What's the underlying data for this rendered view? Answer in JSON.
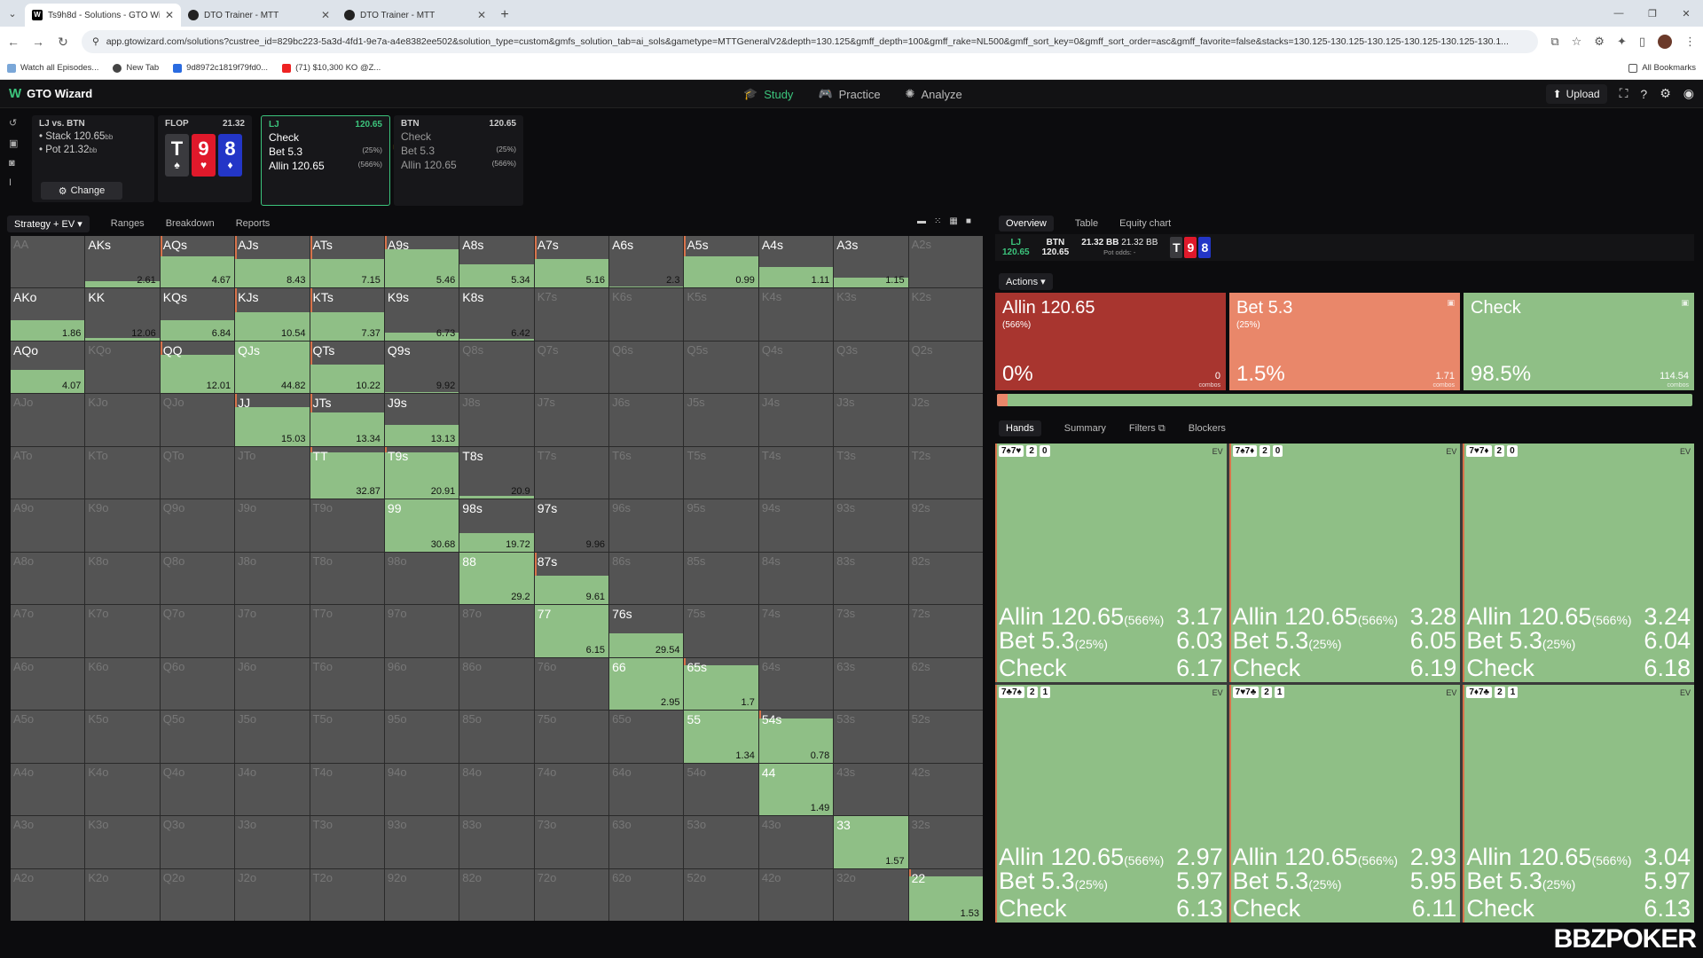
{
  "browser": {
    "tabs": [
      {
        "title": "Ts9h8d - Solutions - GTO Wiza",
        "active": true
      },
      {
        "title": "DTO Trainer - MTT",
        "active": false
      },
      {
        "title": "DTO Trainer - MTT",
        "active": false
      }
    ],
    "url": "app.gtowizard.com/solutions?custree_id=829bc223-5a3d-4fd1-9e7a-a4e8382ee502&solution_type=custom&gmfs_solution_tab=ai_sols&gametype=MTTGeneralV2&depth=130.125&gmff_depth=100&gmff_rake=NL500&gmff_sort_key=0&gmff_sort_order=asc&gmff_favorite=false&stacks=130.125-130.125-130.125-130.125-130.125-130.1...",
    "bookmarks": [
      "Watch all Episodes...",
      "New Tab",
      "9d8972c1819f79fd0...",
      "(71) $10,300 KO @Z..."
    ],
    "all_bookmarks": "All Bookmarks"
  },
  "app": {
    "name": "GTO Wizard",
    "nav": [
      "Study",
      "Practice",
      "Analyze"
    ],
    "upload": "Upload"
  },
  "spot": {
    "matchup": "LJ vs. BTN",
    "stack": "Stack 120.65",
    "stack_unit": "bb",
    "pot": "Pot 21.32",
    "pot_unit": "bb",
    "change": "Change"
  },
  "flop": {
    "label": "FLOP",
    "pot": "21.32",
    "cards": [
      {
        "rank": "T",
        "suit": "♠",
        "color": "#3a3a3e"
      },
      {
        "rank": "9",
        "suit": "♥",
        "color": "#e0192b"
      },
      {
        "rank": "8",
        "suit": "♦",
        "color": "#2336c7"
      }
    ]
  },
  "nodes": {
    "lj": {
      "pos": "LJ",
      "stack": "120.65",
      "actions": [
        {
          "name": "Check",
          "size": ""
        },
        {
          "name": "Bet 5.3",
          "size": "(25%)"
        },
        {
          "name": "Allin 120.65",
          "size": "(566%)"
        }
      ]
    },
    "btn": {
      "pos": "BTN",
      "stack": "120.65",
      "actions": [
        {
          "name": "Check",
          "size": ""
        },
        {
          "name": "Bet 5.3",
          "size": "(25%)"
        },
        {
          "name": "Allin 120.65",
          "size": "(566%)"
        }
      ]
    }
  },
  "left_tabs": [
    "Strategy + EV",
    "Ranges",
    "Breakdown",
    "Reports"
  ],
  "matrix": [
    [
      [
        "AA",
        null,
        0
      ],
      [
        "AKs",
        2.61,
        0.12
      ],
      [
        "AQs",
        4.67,
        0.6
      ],
      [
        "AJs",
        8.43,
        0.55
      ],
      [
        "ATs",
        7.15,
        0.55
      ],
      [
        "A9s",
        5.46,
        0.75
      ],
      [
        "A8s",
        5.34,
        0.45
      ],
      [
        "A7s",
        5.16,
        0.55
      ],
      [
        "A6s",
        2.3,
        0.03
      ],
      [
        "A5s",
        0.99,
        0.6
      ],
      [
        "A4s",
        1.11,
        0.4
      ],
      [
        "A3s",
        1.15,
        0.2
      ],
      [
        "A2s",
        null,
        0
      ]
    ],
    [
      [
        "AKo",
        1.86,
        0.4
      ],
      [
        "KK",
        12.06,
        0.05
      ],
      [
        "KQs",
        6.84,
        0.4
      ],
      [
        "KJs",
        10.54,
        0.55
      ],
      [
        "KTs",
        7.37,
        0.55
      ],
      [
        "K9s",
        6.73,
        0.15
      ],
      [
        "K8s",
        6.42,
        0.03
      ],
      [
        "K7s",
        null,
        0
      ],
      [
        "K6s",
        null,
        0
      ],
      [
        "K5s",
        null,
        0
      ],
      [
        "K4s",
        null,
        0
      ],
      [
        "K3s",
        null,
        0
      ],
      [
        "K2s",
        null,
        0
      ]
    ],
    [
      [
        "AQo",
        4.07,
        0.45
      ],
      [
        "KQo",
        null,
        0
      ],
      [
        "QQ",
        12.01,
        0.75
      ],
      [
        "QJs",
        44.82,
        1
      ],
      [
        "QTs",
        10.22,
        0.55
      ],
      [
        "Q9s",
        9.92,
        0.03
      ],
      [
        "Q8s",
        null,
        0
      ],
      [
        "Q7s",
        null,
        0
      ],
      [
        "Q6s",
        null,
        0
      ],
      [
        "Q5s",
        null,
        0
      ],
      [
        "Q4s",
        null,
        0
      ],
      [
        "Q3s",
        null,
        0
      ],
      [
        "Q2s",
        null,
        0
      ]
    ],
    [
      [
        "AJo",
        null,
        0
      ],
      [
        "KJo",
        null,
        0
      ],
      [
        "QJo",
        null,
        0
      ],
      [
        "JJ",
        15.03,
        0.75
      ],
      [
        "JTs",
        13.34,
        0.65
      ],
      [
        "J9s",
        13.13,
        0.4
      ],
      [
        "J8s",
        null,
        0
      ],
      [
        "J7s",
        null,
        0
      ],
      [
        "J6s",
        null,
        0
      ],
      [
        "J5s",
        null,
        0
      ],
      [
        "J4s",
        null,
        0
      ],
      [
        "J3s",
        null,
        0
      ],
      [
        "J2s",
        null,
        0
      ]
    ],
    [
      [
        "ATo",
        null,
        0
      ],
      [
        "KTo",
        null,
        0
      ],
      [
        "QTo",
        null,
        0
      ],
      [
        "JTo",
        null,
        0
      ],
      [
        "TT",
        32.87,
        0.9
      ],
      [
        "T9s",
        20.91,
        0.9
      ],
      [
        "T8s",
        20.9,
        0.05
      ],
      [
        "T7s",
        null,
        0
      ],
      [
        "T6s",
        null,
        0
      ],
      [
        "T5s",
        null,
        0
      ],
      [
        "T4s",
        null,
        0
      ],
      [
        "T3s",
        null,
        0
      ],
      [
        "T2s",
        null,
        0
      ]
    ],
    [
      [
        "A9o",
        null,
        0
      ],
      [
        "K9o",
        null,
        0
      ],
      [
        "Q9o",
        null,
        0
      ],
      [
        "J9o",
        null,
        0
      ],
      [
        "T9o",
        null,
        0
      ],
      [
        "99",
        30.68,
        1
      ],
      [
        "98s",
        19.72,
        0.35
      ],
      [
        "97s",
        9.96,
        0
      ],
      [
        "96s",
        null,
        0
      ],
      [
        "95s",
        null,
        0
      ],
      [
        "94s",
        null,
        0
      ],
      [
        "93s",
        null,
        0
      ],
      [
        "92s",
        null,
        0
      ]
    ],
    [
      [
        "A8o",
        null,
        0
      ],
      [
        "K8o",
        null,
        0
      ],
      [
        "Q8o",
        null,
        0
      ],
      [
        "J8o",
        null,
        0
      ],
      [
        "T8o",
        null,
        0
      ],
      [
        "98o",
        null,
        0
      ],
      [
        "88",
        29.2,
        1
      ],
      [
        "87s",
        9.61,
        0.55
      ],
      [
        "86s",
        null,
        0
      ],
      [
        "85s",
        null,
        0
      ],
      [
        "84s",
        null,
        0
      ],
      [
        "83s",
        null,
        0
      ],
      [
        "82s",
        null,
        0
      ]
    ],
    [
      [
        "A7o",
        null,
        0
      ],
      [
        "K7o",
        null,
        0
      ],
      [
        "Q7o",
        null,
        0
      ],
      [
        "J7o",
        null,
        0
      ],
      [
        "T7o",
        null,
        0
      ],
      [
        "97o",
        null,
        0
      ],
      [
        "87o",
        null,
        0
      ],
      [
        "77",
        6.15,
        1
      ],
      [
        "76s",
        29.54,
        0.45
      ],
      [
        "75s",
        null,
        0
      ],
      [
        "74s",
        null,
        0
      ],
      [
        "73s",
        null,
        0
      ],
      [
        "72s",
        null,
        0
      ]
    ],
    [
      [
        "A6o",
        null,
        0
      ],
      [
        "K6o",
        null,
        0
      ],
      [
        "Q6o",
        null,
        0
      ],
      [
        "J6o",
        null,
        0
      ],
      [
        "T6o",
        null,
        0
      ],
      [
        "96o",
        null,
        0
      ],
      [
        "86o",
        null,
        0
      ],
      [
        "76o",
        null,
        0
      ],
      [
        "66",
        2.95,
        1
      ],
      [
        "65s",
        1.7,
        0.85
      ],
      [
        "64s",
        null,
        0
      ],
      [
        "63s",
        null,
        0
      ],
      [
        "62s",
        null,
        0
      ]
    ],
    [
      [
        "A5o",
        null,
        0
      ],
      [
        "K5o",
        null,
        0
      ],
      [
        "Q5o",
        null,
        0
      ],
      [
        "J5o",
        null,
        0
      ],
      [
        "T5o",
        null,
        0
      ],
      [
        "95o",
        null,
        0
      ],
      [
        "85o",
        null,
        0
      ],
      [
        "75o",
        null,
        0
      ],
      [
        "65o",
        null,
        0
      ],
      [
        "55",
        1.34,
        1
      ],
      [
        "54s",
        0.78,
        0.85
      ],
      [
        "53s",
        null,
        0
      ],
      [
        "52s",
        null,
        0
      ]
    ],
    [
      [
        "A4o",
        null,
        0
      ],
      [
        "K4o",
        null,
        0
      ],
      [
        "Q4o",
        null,
        0
      ],
      [
        "J4o",
        null,
        0
      ],
      [
        "T4o",
        null,
        0
      ],
      [
        "94o",
        null,
        0
      ],
      [
        "84o",
        null,
        0
      ],
      [
        "74o",
        null,
        0
      ],
      [
        "64o",
        null,
        0
      ],
      [
        "54o",
        null,
        0
      ],
      [
        "44",
        1.49,
        1
      ],
      [
        "43s",
        null,
        0
      ],
      [
        "42s",
        null,
        0
      ]
    ],
    [
      [
        "A3o",
        null,
        0
      ],
      [
        "K3o",
        null,
        0
      ],
      [
        "Q3o",
        null,
        0
      ],
      [
        "J3o",
        null,
        0
      ],
      [
        "T3o",
        null,
        0
      ],
      [
        "93o",
        null,
        0
      ],
      [
        "83o",
        null,
        0
      ],
      [
        "73o",
        null,
        0
      ],
      [
        "63o",
        null,
        0
      ],
      [
        "53o",
        null,
        0
      ],
      [
        "43o",
        null,
        0
      ],
      [
        "33",
        1.57,
        1
      ],
      [
        "32s",
        null,
        0
      ]
    ],
    [
      [
        "A2o",
        null,
        0
      ],
      [
        "K2o",
        null,
        0
      ],
      [
        "Q2o",
        null,
        0
      ],
      [
        "J2o",
        null,
        0
      ],
      [
        "T2o",
        null,
        0
      ],
      [
        "92o",
        null,
        0
      ],
      [
        "82o",
        null,
        0
      ],
      [
        "72o",
        null,
        0
      ],
      [
        "62o",
        null,
        0
      ],
      [
        "52o",
        null,
        0
      ],
      [
        "42o",
        null,
        0
      ],
      [
        "32o",
        null,
        0
      ],
      [
        "22",
        1.53,
        0.85
      ]
    ]
  ],
  "right_tabs": [
    "Overview",
    "Table",
    "Equity chart"
  ],
  "board_bar": {
    "lj_pos": "LJ",
    "lj_stack": "120.65",
    "btn_pos": "BTN",
    "btn_stack": "120.65",
    "pot1": "21.32 BB",
    "pot2": "21.32 BB",
    "pot_odds": "Pot odds: -"
  },
  "actions_label": "Actions",
  "action_boxes": [
    {
      "name": "Allin 120.65",
      "size": "(566%)",
      "pct": "0%",
      "combos": "0",
      "combos_label": "combos",
      "color": "#a8352f",
      "frac": 0
    },
    {
      "name": "Bet 5.3",
      "size": "(25%)",
      "pct": "1.5%",
      "combos": "1.71",
      "combos_label": "combos",
      "color": "#e9876a",
      "frac": 0.015
    },
    {
      "name": "Check",
      "size": "",
      "pct": "98.5%",
      "combos": "114.54",
      "combos_label": "combos",
      "color": "#8fbf86",
      "frac": 0.985
    }
  ],
  "hand_tabs": [
    "Hands",
    "Summary",
    "Filters",
    "Blockers"
  ],
  "hands": [
    {
      "cards": "7♠7♥",
      "badge1": "2",
      "badge2": "0",
      "allin": "Allin 120.65",
      "allin_size": "(566%)",
      "allin_ev": "3.17",
      "bet": "Bet 5.3",
      "bet_size": "(25%)",
      "bet_ev": "6.03",
      "check": "Check",
      "check_ev": "6.17"
    },
    {
      "cards": "7♠7♦",
      "badge1": "2",
      "badge2": "0",
      "allin": "Allin 120.65",
      "allin_size": "(566%)",
      "allin_ev": "3.28",
      "bet": "Bet 5.3",
      "bet_size": "(25%)",
      "bet_ev": "6.05",
      "check": "Check",
      "check_ev": "6.19"
    },
    {
      "cards": "7♥7♦",
      "badge1": "2",
      "badge2": "0",
      "allin": "Allin 120.65",
      "allin_size": "(566%)",
      "allin_ev": "3.24",
      "bet": "Bet 5.3",
      "bet_size": "(25%)",
      "bet_ev": "6.04",
      "check": "Check",
      "check_ev": "6.18"
    },
    {
      "cards": "7♣7♠",
      "badge1": "2",
      "badge2": "1",
      "allin": "Allin 120.65",
      "allin_size": "(566%)",
      "allin_ev": "2.97",
      "bet": "Bet 5.3",
      "bet_size": "(25%)",
      "bet_ev": "5.97",
      "check": "Check",
      "check_ev": "6.13"
    },
    {
      "cards": "7♥7♣",
      "badge1": "2",
      "badge2": "1",
      "allin": "Allin 120.65",
      "allin_size": "(566%)",
      "allin_ev": "2.93",
      "bet": "Bet 5.3",
      "bet_size": "(25%)",
      "bet_ev": "5.95",
      "check": "Check",
      "check_ev": "6.11"
    },
    {
      "cards": "7♦7♣",
      "badge1": "2",
      "badge2": "1",
      "allin": "Allin 120.65",
      "allin_size": "(566%)",
      "allin_ev": "3.04",
      "bet": "Bet 5.3",
      "bet_size": "(25%)",
      "bet_ev": "5.97",
      "check": "Check",
      "check_ev": "6.13"
    }
  ],
  "ev_label": "EV",
  "watermark": "BBZPOKER"
}
